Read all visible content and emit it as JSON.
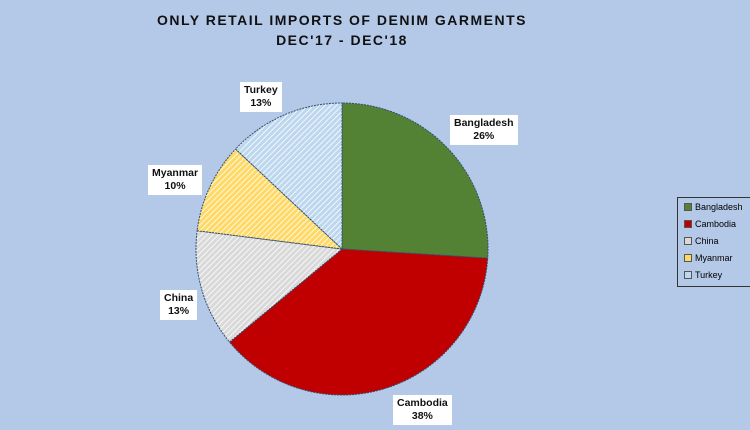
{
  "chart_data": {
    "type": "pie",
    "title": "ONLY RETAIL IMPORTS OF DENIM GARMENTS",
    "subtitle": "DEC'17 - DEC'18",
    "legend_position": "right",
    "slices": [
      {
        "label": "Bangladesh",
        "value": 26,
        "display": "26%",
        "color": "#548235"
      },
      {
        "label": "Cambodia",
        "value": 38,
        "display": "38%",
        "color": "#c00000"
      },
      {
        "label": "China",
        "value": 13,
        "display": "13%",
        "color": "#d9d9d9"
      },
      {
        "label": "Myanmar",
        "value": 10,
        "display": "10%",
        "color": "#ffd966"
      },
      {
        "label": "Turkey",
        "value": 13,
        "display": "13%",
        "color": "#bdd7ee"
      }
    ]
  }
}
